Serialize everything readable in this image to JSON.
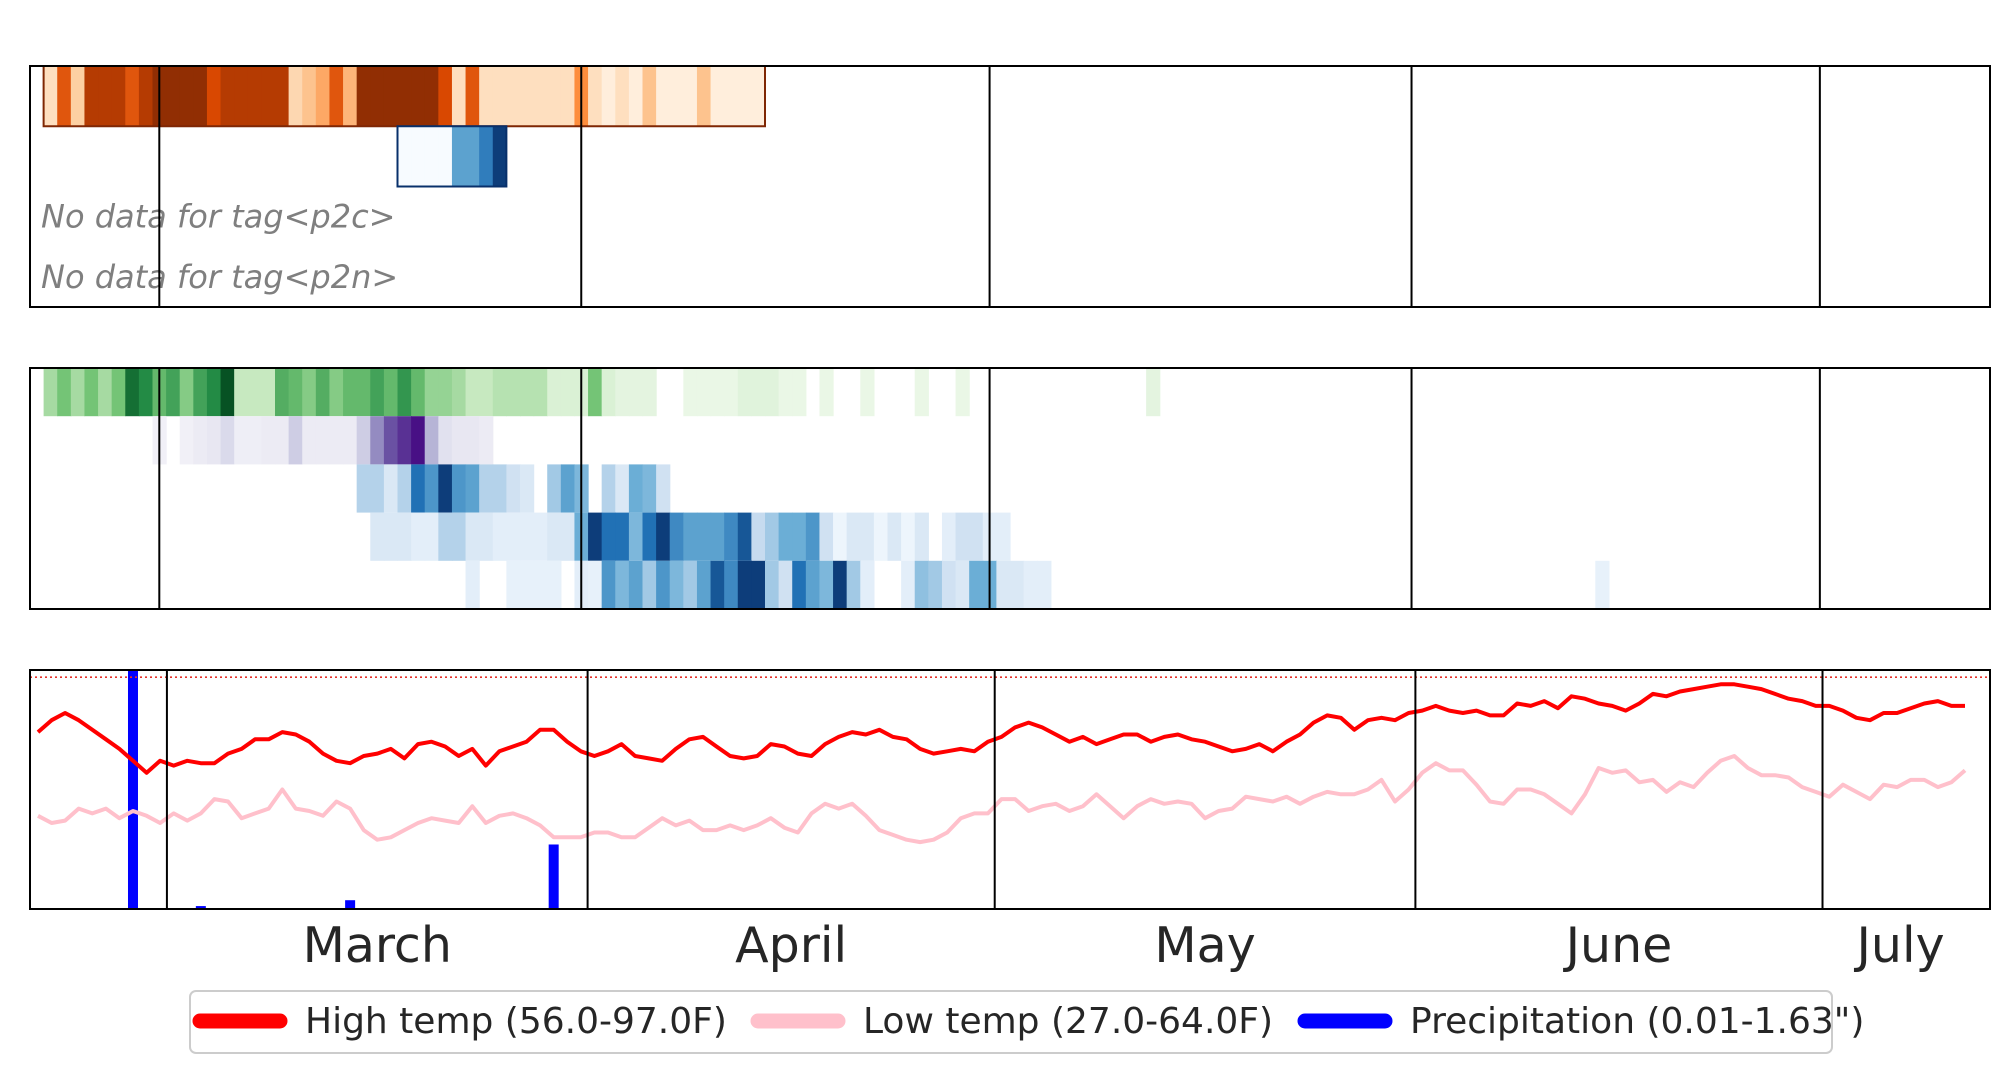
{
  "chart_data": [
    {
      "type": "heatmap",
      "title": "",
      "months": [
        "March",
        "April",
        "May",
        "June",
        "July"
      ],
      "month_starts": [
        1,
        32,
        62,
        93,
        123
      ],
      "days_shown": [
        -9,
        135
      ],
      "rows": [
        {
          "name": "",
          "colormap": "Oranges",
          "first_day": -8,
          "last_day": 45,
          "intensity": [
            0.15,
            0.7,
            0.25,
            0.85,
            0.85,
            0.85,
            0.7,
            0.85,
            0.95,
            0.95,
            0.95,
            0.95,
            0.75,
            0.85,
            0.85,
            0.85,
            0.85,
            0.85,
            0.2,
            0.3,
            0.4,
            0.7,
            0.35,
            0.95,
            0.95,
            0.95,
            0.95,
            0.95,
            0.95,
            0.75,
            0.15,
            0.7,
            0.15,
            0.15,
            0.15,
            0.15,
            0.15,
            0.15,
            0.15,
            0.5,
            0.15,
            0.05,
            0.15,
            0.05,
            0.3,
            0.05,
            0.05,
            0.05,
            0.3,
            0.05,
            0.05,
            0.05,
            0.05
          ]
        },
        {
          "name": "",
          "colormap": "Blues",
          "first_day": 18,
          "last_day": 26,
          "intensity": [
            0,
            0,
            0,
            0,
            0.55,
            0.55,
            0.7,
            0.95
          ]
        }
      ],
      "no_data_tags": [
        "No data for tag<p2c>",
        "No data for tag<p2n>"
      ]
    },
    {
      "type": "heatmap",
      "title": "",
      "rows": [
        {
          "name": "",
          "colormap": "Greens",
          "start": -8,
          "intensity": [
            0.35,
            0.5,
            0.35,
            0.5,
            0.35,
            0.5,
            0.85,
            0.75,
            0.55,
            0.65,
            0.45,
            0.65,
            0.75,
            0.95,
            0.25,
            0.25,
            0.25,
            0.6,
            0.55,
            0.45,
            0.6,
            0.45,
            0.55,
            0.55,
            0.65,
            0.55,
            0.7,
            0.55,
            0.4,
            0.4,
            0.35,
            0.25,
            0.25,
            0.3,
            0.3,
            0.3,
            0.3,
            0.15,
            0.15,
            0.15,
            0.5,
            0.15,
            0.1,
            0.1,
            0.1,
            0,
            0,
            0.07,
            0.07,
            0.07,
            0.07,
            0.12,
            0.12,
            0.12,
            0.07,
            0.07,
            0,
            0.07,
            0,
            0,
            0.07,
            0,
            0,
            0,
            0.07,
            0,
            0,
            0.07,
            0,
            0,
            0,
            0,
            0,
            0,
            0,
            0,
            0,
            0,
            0,
            0,
            0,
            0.1
          ]
        },
        {
          "name": "",
          "colormap": "Purples",
          "start": 0,
          "intensity": [
            0.08,
            0,
            0.08,
            0.12,
            0.15,
            0.25,
            0.1,
            0.1,
            0.12,
            0.12,
            0.3,
            0.12,
            0.12,
            0.12,
            0.12,
            0.3,
            0.55,
            0.75,
            0.85,
            0.95,
            0.4,
            0.2,
            0.15,
            0.15,
            0.12
          ]
        },
        {
          "name": "",
          "colormap": "Blues",
          "start": 15,
          "intensity": [
            0.3,
            0.3,
            0.15,
            0.3,
            0.75,
            0.6,
            0.95,
            0.6,
            0.55,
            0.3,
            0.3,
            0.2,
            0.15,
            0,
            0.35,
            0.55,
            0.45,
            0,
            0.3,
            0.15,
            0.5,
            0.45,
            0.2
          ]
        },
        {
          "name": "",
          "colormap": "Blues",
          "start": 16,
          "intensity": [
            0.15,
            0.15,
            0.15,
            0.1,
            0.1,
            0.3,
            0.3,
            0.15,
            0.15,
            0.1,
            0.1,
            0.1,
            0.1,
            0.15,
            0.15,
            0.5,
            0.95,
            0.75,
            0.75,
            0.45,
            0.75,
            0.95,
            0.65,
            0.55,
            0.55,
            0.55,
            0.65,
            0.85,
            0.25,
            0.35,
            0.5,
            0.5,
            0.6,
            0.2,
            0.05,
            0.15,
            0.15,
            0.05,
            0.15,
            0.05,
            0.15,
            0,
            0.1,
            0.2,
            0.2,
            0.1,
            0.1
          ]
        },
        {
          "name": "",
          "colormap": "Blues",
          "start": 23,
          "intensity": [
            0.1,
            0,
            0,
            0.08,
            0.08,
            0.08,
            0.08,
            0,
            0.1,
            0.08,
            0.6,
            0.45,
            0.55,
            0.35,
            0.6,
            0.45,
            0.35,
            0.55,
            0.85,
            0.65,
            0.95,
            0.95,
            0.35,
            0.2,
            0.75,
            0.55,
            0.45,
            0.95,
            0.35,
            0.1,
            0,
            0,
            0.1,
            0.4,
            0.35,
            0.2,
            0.15,
            0.5,
            0.5,
            0.15,
            0.15,
            0.1,
            0.1,
            0,
            0,
            0,
            0,
            0,
            0,
            0,
            0,
            0,
            0,
            0,
            0,
            0,
            0,
            0,
            0,
            0,
            0,
            0,
            0,
            0,
            0,
            0,
            0,
            0,
            0,
            0,
            0,
            0,
            0,
            0,
            0,
            0,
            0,
            0,
            0,
            0,
            0,
            0,
            0,
            0.08
          ]
        }
      ]
    },
    {
      "type": "line",
      "title": "",
      "ylim": [
        0,
        100
      ],
      "reference_line": 97,
      "x_start": -9,
      "series": [
        {
          "name": "High temp (56.0-97.0F)",
          "color": "#ff0000",
          "values": [
            74,
            79,
            82,
            79,
            75,
            71,
            67,
            62,
            57,
            62,
            60,
            62,
            61,
            61,
            65,
            67,
            71,
            71,
            74,
            73,
            70,
            65,
            62,
            61,
            64,
            65,
            67,
            63,
            69,
            70,
            68,
            64,
            67,
            60,
            66,
            68,
            70,
            75,
            75,
            70,
            66,
            64,
            66,
            69,
            64,
            63,
            62,
            67,
            71,
            72,
            68,
            64,
            63,
            64,
            69,
            68,
            65,
            64,
            69,
            72,
            74,
            73,
            75,
            72,
            71,
            67,
            65,
            66,
            67,
            66,
            70,
            72,
            76,
            78,
            76,
            73,
            70,
            72,
            69,
            71,
            73,
            73,
            70,
            72,
            73,
            71,
            70,
            68,
            66,
            67,
            69,
            66,
            70,
            73,
            78,
            81,
            80,
            75,
            79,
            80,
            79,
            82,
            83,
            85,
            83,
            82,
            83,
            81,
            81,
            86,
            85,
            87,
            84,
            89,
            88,
            86,
            85,
            83,
            86,
            90,
            89,
            91,
            92,
            93,
            94,
            94,
            93,
            92,
            90,
            88,
            87,
            85,
            85,
            83,
            80,
            79,
            82,
            82,
            84,
            86,
            87,
            85,
            85
          ]
        },
        {
          "name": "Low temp (27.0-64.0F)",
          "color": "#ffc0cb",
          "values": [
            39,
            36,
            37,
            42,
            40,
            42,
            38,
            41,
            39,
            36,
            40,
            37,
            40,
            46,
            45,
            38,
            40,
            42,
            50,
            42,
            41,
            39,
            45,
            42,
            33,
            29,
            30,
            33,
            36,
            38,
            37,
            36,
            43,
            36,
            39,
            40,
            38,
            35,
            30,
            30,
            30,
            32,
            32,
            30,
            30,
            34,
            38,
            35,
            37,
            33,
            33,
            35,
            33,
            35,
            38,
            34,
            32,
            40,
            44,
            42,
            44,
            39,
            33,
            31,
            29,
            28,
            29,
            32,
            38,
            40,
            40,
            46,
            46,
            41,
            43,
            44,
            41,
            43,
            48,
            43,
            38,
            43,
            46,
            44,
            45,
            44,
            38,
            41,
            42,
            47,
            46,
            45,
            47,
            44,
            47,
            49,
            48,
            48,
            50,
            54,
            45,
            50,
            57,
            61,
            58,
            58,
            52,
            45,
            44,
            50,
            50,
            48,
            44,
            40,
            48,
            59,
            57,
            58,
            53,
            54,
            49,
            53,
            51,
            57,
            62,
            64,
            59,
            56,
            56,
            55,
            51,
            49,
            47,
            52,
            49,
            46,
            52,
            51,
            54,
            54,
            51,
            53,
            58
          ]
        },
        {
          "name": "Precipitation (0.01-1.63\")",
          "color": "#0000ff",
          "type": "bar",
          "x": [
            -2,
            3,
            14,
            29
          ],
          "values": [
            1.63,
            0.02,
            0.06,
            0.44
          ],
          "ylim": [
            0,
            1.63
          ]
        }
      ],
      "legend": "bottom-center"
    }
  ]
}
